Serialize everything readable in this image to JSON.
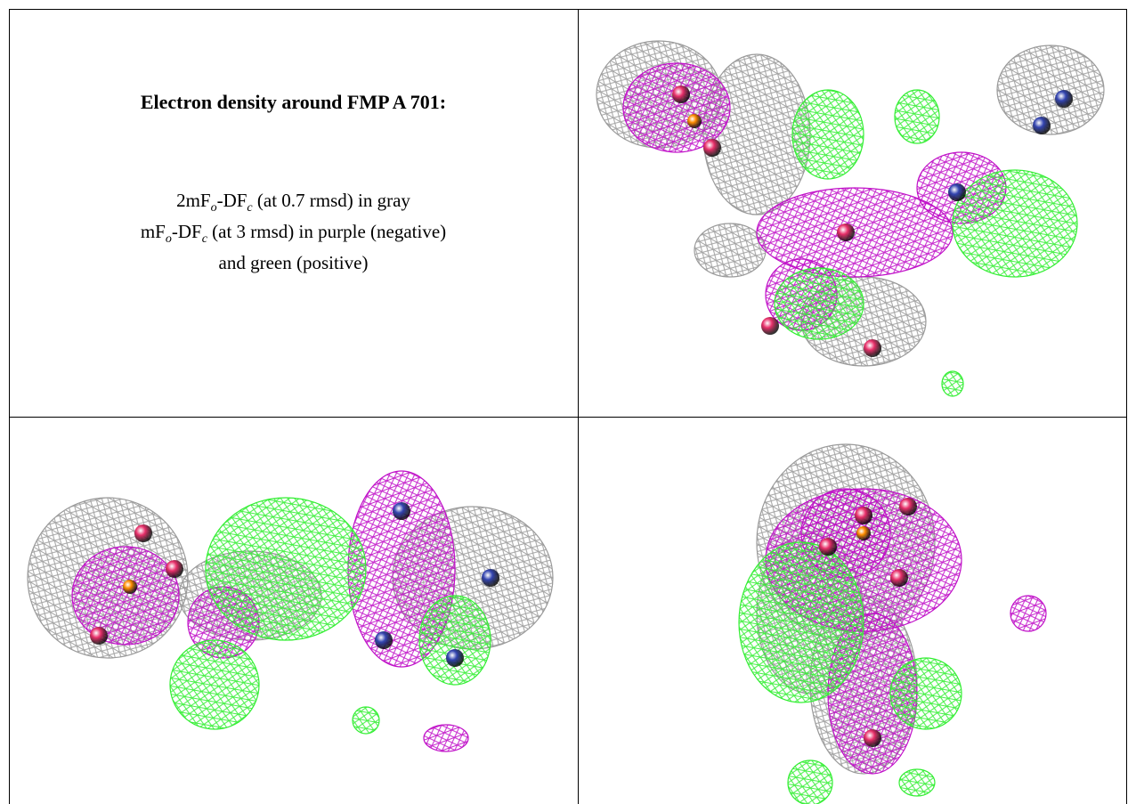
{
  "header": {
    "title": "Electron density around FMP A 701:"
  },
  "legend": [
    {
      "parts": [
        "2mF",
        "o",
        "-DF",
        "c",
        " (at 0.7 rmsd) in gray"
      ]
    },
    {
      "parts": [
        "mF",
        "o",
        "-DF",
        "c",
        " (at 3 rmsd) in purple (negative)"
      ]
    },
    {
      "parts": [
        "and green (positive)"
      ]
    }
  ]
}
